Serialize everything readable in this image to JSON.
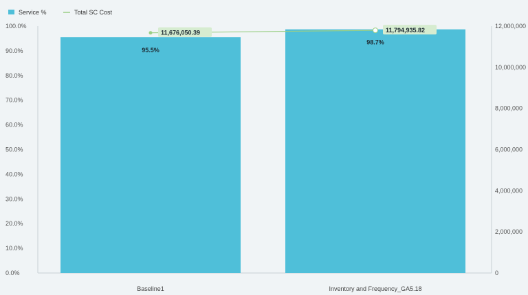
{
  "chart_data": {
    "type": "bar",
    "categories": [
      "Baseline1",
      "Inventory and Frequency_GA5.18"
    ],
    "series": [
      {
        "name": "Service %",
        "kind": "bar",
        "axis": "left",
        "color": "#4fbfd9",
        "values": [
          95.5,
          98.7
        ],
        "labels": [
          "95.5%",
          "98.7%"
        ]
      },
      {
        "name": "Total SC Cost",
        "kind": "line",
        "axis": "right",
        "color": "#9bcf86",
        "values": [
          11676050.39,
          11794935.82
        ],
        "labels": [
          "11,676,050.39",
          "11,794,935.82"
        ]
      }
    ],
    "y_left": {
      "range": [
        0,
        100
      ],
      "ticks": [
        0,
        10,
        20,
        30,
        40,
        50,
        60,
        70,
        80,
        90,
        100
      ],
      "tick_labels": [
        "0.0%",
        "10.0%",
        "20.0%",
        "30.0%",
        "40.0%",
        "50.0%",
        "60.0%",
        "70.0%",
        "80.0%",
        "90.0%",
        "100.0%"
      ]
    },
    "y_right": {
      "range": [
        0,
        12000000
      ],
      "ticks": [
        0,
        2000000,
        4000000,
        6000000,
        8000000,
        10000000,
        12000000
      ],
      "tick_labels": [
        "0",
        "2,000,000",
        "4,000,000",
        "6,000,000",
        "8,000,000",
        "10,000,000",
        "12,000,000"
      ]
    },
    "legend": {
      "position": "top-left",
      "entries": [
        "Service %",
        "Total SC Cost"
      ]
    },
    "grid": false
  }
}
